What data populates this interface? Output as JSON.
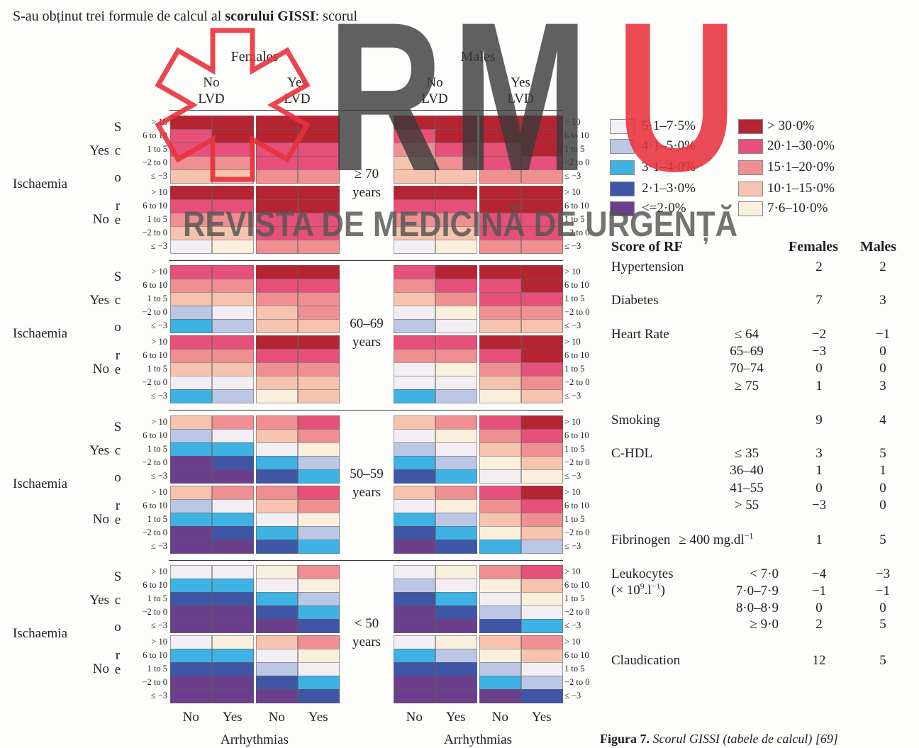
{
  "intro": {
    "text_before": "S-au obținut trei formule de calcul al ",
    "bold": "scorului GISSI",
    "text_after": ": scorul"
  },
  "watermark": {
    "letters": [
      "R",
      "M",
      "U"
    ],
    "name": "REVISTA DE MEDICINĂ DE URGENȚĂ",
    "colors": {
      "gray": "#3a3a3a",
      "red": "#e8323c"
    }
  },
  "figure": {
    "sex_headers": [
      "Females",
      "Males"
    ],
    "lvd_headers": [
      {
        "line1": "No",
        "line2": "LVD"
      },
      {
        "line1": "Yes",
        "line2": "LVD"
      },
      {
        "line1": "No",
        "line2": "LVD"
      },
      {
        "line1": "Yes",
        "line2": "LVD"
      }
    ],
    "score_letters": [
      "S",
      "c",
      "o",
      "r",
      "e"
    ],
    "ischaemia_label": "Ischaemia",
    "ischaemia_values": [
      "Yes",
      "No"
    ],
    "score_rows": [
      "> 10",
      "6 to 10",
      "1 to 5",
      "−2 to 0",
      "≤ −3"
    ],
    "arrhythmia_values": [
      "No",
      "Yes"
    ],
    "arrhythmia_label": "Arrhythmias",
    "levels": [
      {
        "label": "<=2·0%",
        "color": "#6b3f8c"
      },
      {
        "label": "2·1–3·0%",
        "color": "#3f56a6"
      },
      {
        "label": "3·1–4·0%",
        "color": "#3fb2e4"
      },
      {
        "label": "4·1–5·0%",
        "color": "#bcc7e6"
      },
      {
        "label": "5·1–7·5%",
        "color": "#f2eef4"
      },
      {
        "label": "7·6–10·0%",
        "color": "#faeedd"
      },
      {
        "label": "10·1–15·0%",
        "color": "#f6c3ae"
      },
      {
        "label": "15·1–20·0%",
        "color": "#ef8f92"
      },
      {
        "label": "20·1–30·0%",
        "color": "#e6507a"
      },
      {
        "label": "> 30·0%",
        "color": "#b52431"
      }
    ],
    "legend_left": [
      4,
      3,
      2,
      1,
      0
    ],
    "legend_right": [
      9,
      8,
      7,
      6,
      5
    ],
    "blocks": [
      {
        "age": "≥ 70",
        "unit": "years",
        "yes": [
          [
            9,
            9,
            9,
            9,
            9,
            9,
            9,
            9
          ],
          [
            8,
            9,
            9,
            9,
            8,
            9,
            9,
            9
          ],
          [
            8,
            8,
            8,
            8,
            7,
            8,
            8,
            9
          ],
          [
            7,
            7,
            8,
            8,
            6,
            7,
            8,
            8
          ],
          [
            6,
            6,
            7,
            7,
            6,
            6,
            7,
            7
          ]
        ],
        "no": [
          [
            9,
            9,
            9,
            9,
            9,
            9,
            9,
            9
          ],
          [
            8,
            8,
            9,
            9,
            8,
            8,
            9,
            9
          ],
          [
            7,
            7,
            8,
            8,
            7,
            7,
            8,
            8
          ],
          [
            6,
            6,
            8,
            8,
            6,
            6,
            8,
            8
          ],
          [
            4,
            5,
            7,
            7,
            4,
            5,
            7,
            7
          ]
        ]
      },
      {
        "age": "60–69",
        "unit": "years",
        "yes": [
          [
            8,
            8,
            9,
            9,
            8,
            9,
            9,
            9
          ],
          [
            7,
            7,
            8,
            8,
            7,
            8,
            8,
            9
          ],
          [
            6,
            6,
            7,
            7,
            6,
            7,
            8,
            8
          ],
          [
            3,
            4,
            6,
            7,
            4,
            5,
            7,
            7
          ],
          [
            2,
            3,
            6,
            6,
            3,
            4,
            6,
            6
          ]
        ],
        "no": [
          [
            8,
            8,
            9,
            9,
            8,
            8,
            9,
            9
          ],
          [
            7,
            7,
            8,
            8,
            7,
            7,
            8,
            9
          ],
          [
            6,
            6,
            7,
            7,
            4,
            5,
            7,
            8
          ],
          [
            4,
            4,
            6,
            6,
            4,
            4,
            6,
            7
          ],
          [
            2,
            3,
            5,
            6,
            2,
            3,
            5,
            6
          ]
        ]
      },
      {
        "age": "50–59",
        "unit": "years",
        "yes": [
          [
            6,
            7,
            7,
            8,
            6,
            7,
            8,
            9
          ],
          [
            3,
            4,
            6,
            7,
            4,
            5,
            7,
            8
          ],
          [
            2,
            2,
            4,
            5,
            3,
            4,
            6,
            7
          ],
          [
            0,
            1,
            2,
            3,
            2,
            3,
            5,
            6
          ],
          [
            0,
            0,
            1,
            2,
            1,
            2,
            4,
            5
          ]
        ],
        "no": [
          [
            6,
            7,
            7,
            8,
            6,
            7,
            8,
            9
          ],
          [
            3,
            4,
            6,
            7,
            4,
            5,
            7,
            8
          ],
          [
            2,
            2,
            4,
            5,
            2,
            3,
            6,
            7
          ],
          [
            0,
            1,
            2,
            3,
            1,
            2,
            5,
            6
          ],
          [
            0,
            0,
            1,
            2,
            0,
            1,
            2,
            3
          ]
        ]
      },
      {
        "age": "< 50",
        "unit": "years",
        "yes": [
          [
            4,
            4,
            5,
            7,
            4,
            5,
            7,
            8
          ],
          [
            2,
            2,
            4,
            5,
            3,
            4,
            5,
            6
          ],
          [
            1,
            1,
            2,
            3,
            1,
            2,
            4,
            5
          ],
          [
            0,
            0,
            1,
            2,
            0,
            1,
            3,
            4
          ],
          [
            0,
            0,
            0,
            1,
            0,
            0,
            1,
            2
          ]
        ],
        "no": [
          [
            4,
            5,
            6,
            7,
            4,
            5,
            6,
            7
          ],
          [
            2,
            2,
            4,
            5,
            2,
            3,
            5,
            6
          ],
          [
            1,
            1,
            3,
            4,
            1,
            1,
            3,
            4
          ],
          [
            0,
            0,
            1,
            2,
            0,
            0,
            2,
            3
          ],
          [
            0,
            0,
            0,
            1,
            0,
            0,
            0,
            1
          ]
        ]
      }
    ]
  },
  "table": {
    "title": "Score of RF",
    "col_females": "Females",
    "col_males": "Males",
    "rows": [
      {
        "name": "Hypertension",
        "subs": [
          {
            "f": "2",
            "m": "2"
          }
        ]
      },
      {
        "name": "Diabetes",
        "subs": [
          {
            "f": "7",
            "m": "3"
          }
        ]
      },
      {
        "name": "Heart Rate",
        "subs": [
          {
            "label": "≤ 64",
            "f": "−2",
            "m": "−1"
          },
          {
            "label": "65–69",
            "f": "−3",
            "m": "0"
          },
          {
            "label": "70–74",
            "f": "0",
            "m": "0"
          },
          {
            "label": "≥ 75",
            "f": "1",
            "m": "3"
          }
        ]
      },
      {
        "name": "Smoking",
        "subs": [
          {
            "f": "9",
            "m": "4"
          }
        ]
      },
      {
        "name": "C-HDL",
        "subs": [
          {
            "label": "≤ 35",
            "f": "3",
            "m": "5"
          },
          {
            "label": "36–40",
            "f": "1",
            "m": "1"
          },
          {
            "label": "41–55",
            "f": "0",
            "m": "0"
          },
          {
            "label": "> 55",
            "f": "−3",
            "m": "0"
          }
        ]
      },
      {
        "name": "Fibrinogen",
        "unit": {
          "base": "≥ 400 mg.dl",
          "sup": "−1"
        },
        "subs": [
          {
            "f": "1",
            "m": "5"
          }
        ]
      },
      {
        "name": "Leukocytes",
        "unit_line": {
          "base": "(× 10",
          "sup1": "9",
          "mid": ".l",
          "sup2": "−1",
          "end": ")"
        },
        "subs": [
          {
            "label": "< 7·0",
            "f": "−4",
            "m": "−3"
          },
          {
            "label": "7·0–7·9",
            "f": "−1",
            "m": "−1"
          },
          {
            "label": "8·0–8·9",
            "f": "0",
            "m": "0"
          },
          {
            "label": "≥ 9·0",
            "f": "2",
            "m": "5"
          }
        ]
      },
      {
        "name": "Claudication",
        "subs": [
          {
            "f": "12",
            "m": "5"
          }
        ]
      }
    ]
  },
  "caption": {
    "label": "Figura 7.",
    "text": " Scorul GISSI (tabele de calcul) [69]"
  }
}
